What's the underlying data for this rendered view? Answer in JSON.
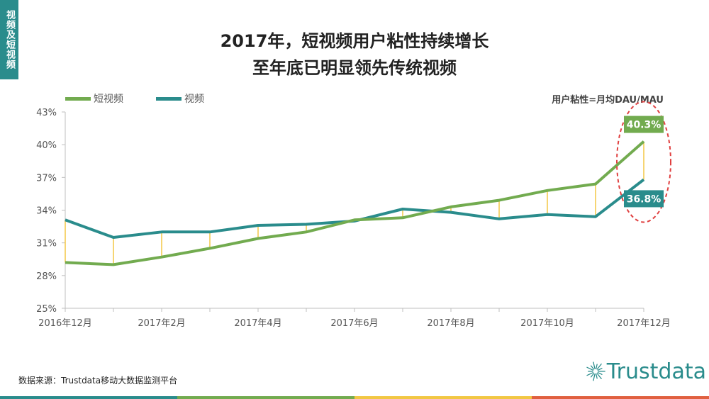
{
  "side_tab": "视频及短视频",
  "title_line1": "2017年，短视频用户粘性持续增长",
  "title_line2": "至年底已明显领先传统视频",
  "unit_label": "用户粘性=月均DAU/MAU",
  "source": "数据来源：Trustdata移动大数据监测平台",
  "logo_text": "Trustdata",
  "colors": {
    "short_video": "#72ab4f",
    "video": "#2a8c8c",
    "connector": "#f2c744",
    "highlight_circle": "#e04040",
    "axis": "#bfbfbf"
  },
  "bottom_bar_colors": [
    "#2a8c8c",
    "#72ab4f",
    "#f2c744",
    "#e06040"
  ],
  "chart_data": {
    "type": "line",
    "categories": [
      "2016年12月",
      "2017年1月",
      "2017年2月",
      "2017年3月",
      "2017年4月",
      "2017年5月",
      "2017年6月",
      "2017年7月",
      "2017年8月",
      "2017年9月",
      "2017年10月",
      "2017年11月",
      "2017年12月"
    ],
    "x_tick_labels": [
      "2016年12月",
      "",
      "2017年2月",
      "",
      "2017年4月",
      "",
      "2017年6月",
      "",
      "2017年8月",
      "",
      "2017年10月",
      "",
      "2017年12月"
    ],
    "y_ticks": [
      "25%",
      "28%",
      "31%",
      "34%",
      "37%",
      "40%",
      "43%"
    ],
    "ylim": [
      25,
      43
    ],
    "series": [
      {
        "name": "短视频",
        "values": [
          29.2,
          29.0,
          29.7,
          30.5,
          31.4,
          32.0,
          33.1,
          33.3,
          34.3,
          34.9,
          35.8,
          36.4,
          40.3
        ],
        "end_label": "40.3%"
      },
      {
        "name": "视频",
        "values": [
          33.1,
          31.5,
          32.0,
          32.0,
          32.6,
          32.7,
          33.0,
          34.1,
          33.8,
          33.2,
          33.6,
          33.4,
          36.8
        ],
        "end_label": "36.8%"
      }
    ]
  }
}
